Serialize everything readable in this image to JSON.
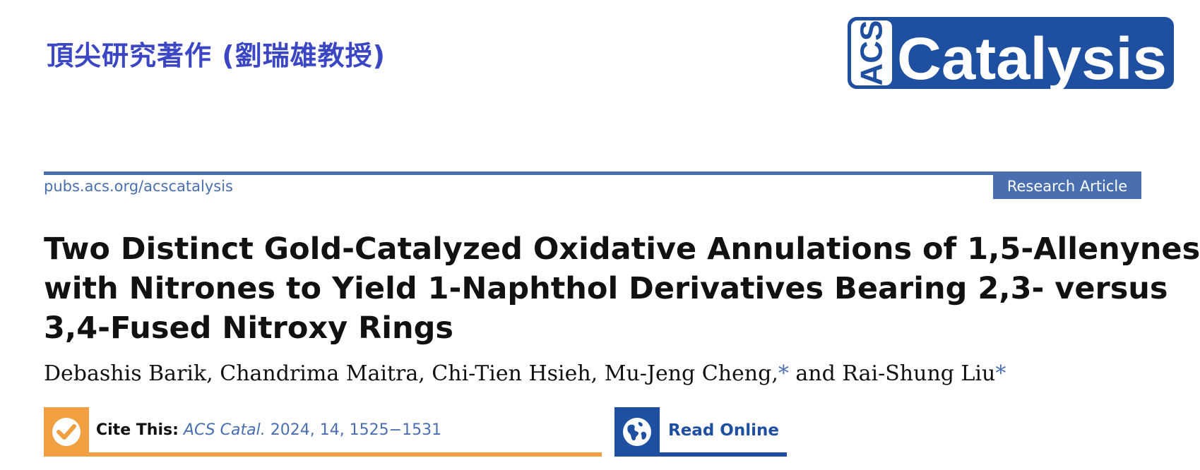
{
  "header": {
    "chinese_title": "頂尖研究著作 (劉瑞雄教授)"
  },
  "logo": {
    "acs": "ACS",
    "journal": "Catalysis"
  },
  "journal": {
    "url": "pubs.acs.org/acscatalysis",
    "article_type": "Research Article"
  },
  "article": {
    "title_lines": [
      "Two Distinct Gold-Catalyzed Oxidative Annulations of 1,5-Allenynes",
      "with Nitrones to Yield 1-Naphthol Derivatives Bearing 2,3- versus",
      "3,4-Fused Nitroxy Rings"
    ],
    "authors_before": "Debashis Barik, Chandrima Maitra, Chi-Tien Hsieh, Mu-Jeng Cheng,",
    "star": "*",
    "authors_mid": " and Rai-Shung Liu",
    "star2": "*"
  },
  "cite": {
    "label": "Cite This:",
    "journal": "ACS Catal.",
    "details": " 2024, 14, 1525−1531"
  },
  "read_online": {
    "label": "Read Online"
  },
  "colors": {
    "accent_blue": "#4a6fb1",
    "logo_blue": "#1f4fa0",
    "cite_orange": "#f0a040",
    "header_purple": "#3b46c4"
  },
  "icons": {
    "cite": "checkmark-circle-icon",
    "read": "globe-icon"
  }
}
